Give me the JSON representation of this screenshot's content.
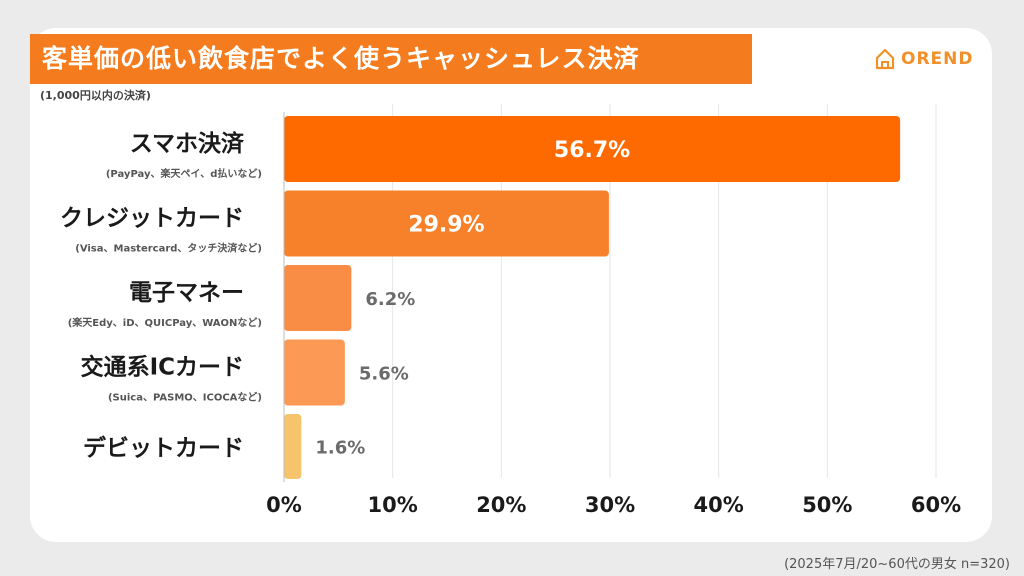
{
  "header": {
    "title": "客単価の低い飲食店でよく使うキャッシュレス決済",
    "subtitle": "(1,000円以内の決済)",
    "logo_text": "OREND",
    "footnote": "(2025年7月/20~60代の男女  n=320)"
  },
  "colors": {
    "accent": "#f47c1e",
    "bar1": "#ff6a00",
    "bar2": "#f7812a",
    "bar3": "#f98d45",
    "bar4": "#fc9a55",
    "bar5": "#f6c46c",
    "grid": "#e6e6e6"
  },
  "chart_data": {
    "type": "bar",
    "orientation": "horizontal",
    "categories": [
      "スマホ決済",
      "クレジットカード",
      "電子マネー",
      "交通系ICカード",
      "デビットカード"
    ],
    "category_notes": [
      "(PayPay、楽天ペイ、d払いなど)",
      "(Visa、Mastercard、タッチ決済など)",
      "(楽天Edy、iD、QUICPay、WAONなど)",
      "(Suica、PASMO、ICOCAなど)",
      ""
    ],
    "values": [
      56.7,
      29.9,
      6.2,
      5.6,
      1.6
    ],
    "value_labels": [
      "56.7%",
      "29.9%",
      "6.2%",
      "5.6%",
      "1.6%"
    ],
    "xlim": [
      0,
      60
    ],
    "x_ticks": [
      "0%",
      "10%",
      "20%",
      "30%",
      "40%",
      "50%",
      "60%"
    ],
    "grid": true,
    "legend": "none"
  }
}
